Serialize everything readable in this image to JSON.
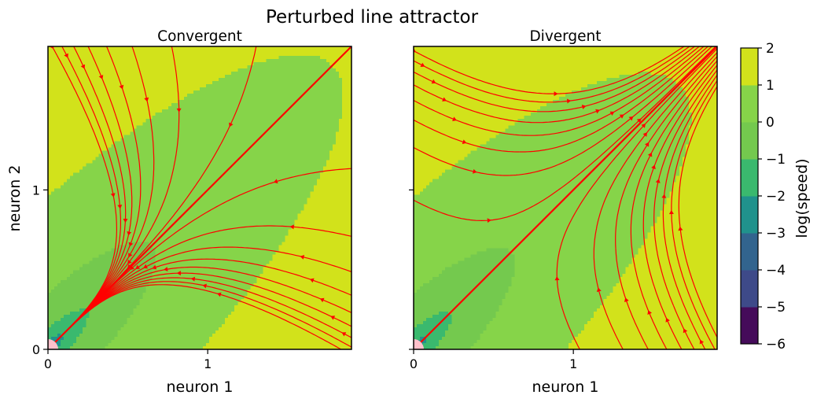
{
  "figure": {
    "title": "Perturbed line attractor",
    "ylabel": "neuron 2",
    "colorbar_label": "log(speed)"
  },
  "colors": {
    "stream": "#ff0000",
    "fixed_point": "#ffc0cb",
    "levels": [
      "#440154",
      "#46327e",
      "#365c8d",
      "#277f8e",
      "#1fa187",
      "#4ac16d",
      "#a0da39",
      "#fde725"
    ],
    "levels_used": [
      "#450b5a",
      "#3e4a89",
      "#32648e",
      "#20928c",
      "#3ab96e",
      "#74c94e",
      "#86d449",
      "#d2e21b"
    ]
  },
  "chart_data": [
    {
      "type": "streamplot-contourf",
      "title": "Convergent",
      "xlabel": "neuron 1",
      "ylabel": "neuron 2",
      "xlim": [
        0,
        1.9
      ],
      "ylim": [
        0,
        1.9
      ],
      "xticks": [
        {
          "value": 0,
          "label": "0"
        },
        {
          "value": 1,
          "label": "1"
        }
      ],
      "yticks": [
        {
          "value": 0,
          "label": "0"
        },
        {
          "value": 1,
          "label": "1"
        }
      ],
      "fixed_point": [
        0,
        0
      ],
      "flow": "convergent"
    },
    {
      "type": "streamplot-contourf",
      "title": "Divergent",
      "xlabel": "neuron 1",
      "ylabel": "",
      "xlim": [
        0,
        1.9
      ],
      "ylim": [
        0,
        1.9
      ],
      "xticks": [
        {
          "value": 0,
          "label": "0"
        },
        {
          "value": 1,
          "label": "1"
        }
      ],
      "yticks": [
        {
          "value": 0,
          "label": ""
        },
        {
          "value": 1,
          "label": ""
        }
      ],
      "fixed_point": [
        0,
        0
      ],
      "flow": "divergent"
    }
  ],
  "colorbar": {
    "range": [
      -6,
      2
    ],
    "ticks": [
      {
        "value": 2,
        "label": "2"
      },
      {
        "value": 1,
        "label": "1"
      },
      {
        "value": 0,
        "label": "0"
      },
      {
        "value": -1,
        "label": "−1"
      },
      {
        "value": -2,
        "label": "−2"
      },
      {
        "value": -3,
        "label": "−3"
      },
      {
        "value": -4,
        "label": "−4"
      },
      {
        "value": -5,
        "label": "−5"
      },
      {
        "value": -6,
        "label": "−6"
      }
    ]
  }
}
